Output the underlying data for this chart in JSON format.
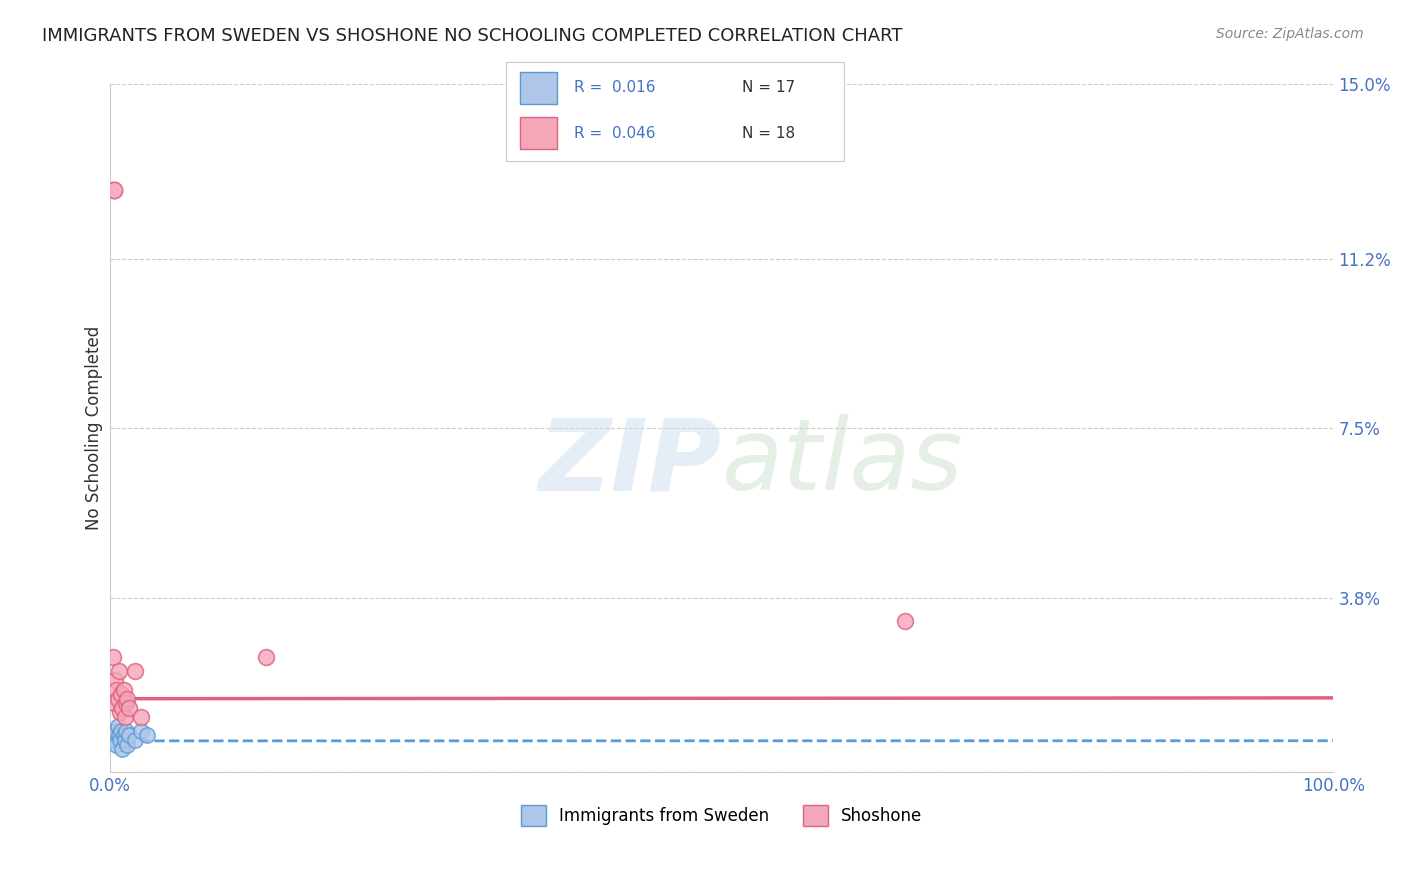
{
  "title": "IMMIGRANTS FROM SWEDEN VS SHOSHONE NO SCHOOLING COMPLETED CORRELATION CHART",
  "source": "Source: ZipAtlas.com",
  "ylabel": "No Schooling Completed",
  "xlim": [
    0.0,
    1.0
  ],
  "ylim": [
    0.0,
    0.15
  ],
  "yticks": [
    0.0,
    0.038,
    0.075,
    0.112,
    0.15
  ],
  "ytick_labels": [
    "",
    "3.8%",
    "7.5%",
    "11.2%",
    "15.0%"
  ],
  "xtick_labels": [
    "0.0%",
    "100.0%"
  ],
  "background_color": "#ffffff",
  "grid_color": "#cccccc",
  "sweden_color": "#aec6e8",
  "shoshone_color": "#f4a7b9",
  "sweden_line_color": "#5b9bd5",
  "shoshone_line_color": "#e06080",
  "sweden_scatter_x": [
    0.002,
    0.003,
    0.004,
    0.005,
    0.006,
    0.007,
    0.008,
    0.009,
    0.01,
    0.011,
    0.012,
    0.013,
    0.014,
    0.015,
    0.02,
    0.025,
    0.03
  ],
  "sweden_scatter_y": [
    0.008,
    0.007,
    0.009,
    0.006,
    0.01,
    0.008,
    0.007,
    0.009,
    0.005,
    0.008,
    0.007,
    0.009,
    0.006,
    0.008,
    0.007,
    0.009,
    0.008
  ],
  "shoshone_scatter_x": [
    0.002,
    0.003,
    0.004,
    0.005,
    0.006,
    0.007,
    0.008,
    0.009,
    0.01,
    0.011,
    0.012,
    0.013,
    0.014,
    0.015,
    0.02,
    0.025,
    0.65,
    0.127
  ],
  "shoshone_scatter_y": [
    0.025,
    0.015,
    0.02,
    0.018,
    0.016,
    0.022,
    0.013,
    0.017,
    0.014,
    0.018,
    0.012,
    0.015,
    0.016,
    0.014,
    0.022,
    0.012,
    0.033,
    0.025
  ],
  "shoshone_outlier_x": [
    0.003
  ],
  "shoshone_outlier_y": [
    0.127
  ],
  "sweden_intercept": 0.0068,
  "sweden_slope": 3e-05,
  "shoshone_intercept": 0.016,
  "shoshone_slope": 0.00018,
  "reg_line_x": [
    0.0,
    1.0
  ]
}
